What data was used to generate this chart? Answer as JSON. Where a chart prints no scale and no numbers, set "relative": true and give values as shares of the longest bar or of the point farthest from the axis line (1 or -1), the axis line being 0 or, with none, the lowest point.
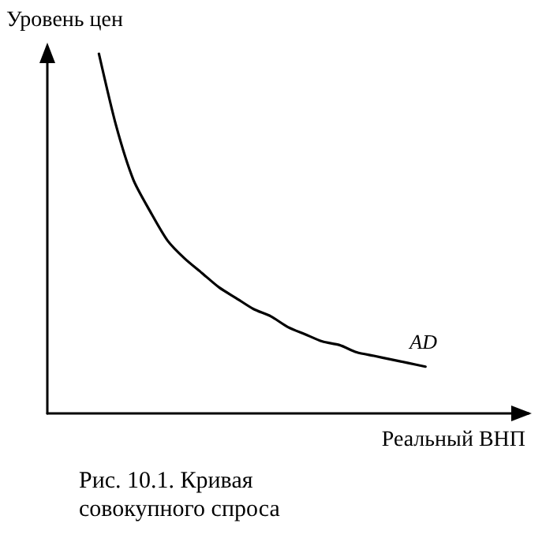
{
  "chart_data": {
    "type": "line",
    "relative": true,
    "ylabel": "Уровень цен",
    "xlabel": "Реальный ВНП",
    "categories": [
      null,
      null,
      null,
      null,
      null,
      null,
      null,
      null,
      null,
      null,
      null,
      null,
      null,
      null,
      null,
      null,
      null,
      null,
      null,
      null,
      null,
      null,
      null,
      null,
      null,
      null,
      null,
      null,
      null
    ],
    "series": [
      {
        "name": "AD",
        "color": "#000000",
        "values": [
          null,
          null,
          null,
          1,
          0.8,
          0.65,
          0.56,
          0.48,
          0.43,
          0.39,
          0.35,
          0.32,
          0.29,
          0.27,
          0.24,
          0.22,
          0.2,
          0.19,
          0.17,
          0.16,
          0.15,
          0.14,
          0.13,
          null,
          null,
          null,
          null,
          null,
          null
        ]
      }
    ],
    "marker": "none",
    "line_style": "solid",
    "legend": false,
    "grid": false,
    "annotations": [
      "Рис. 10.1. Кривая совокупного спроса"
    ]
  }
}
